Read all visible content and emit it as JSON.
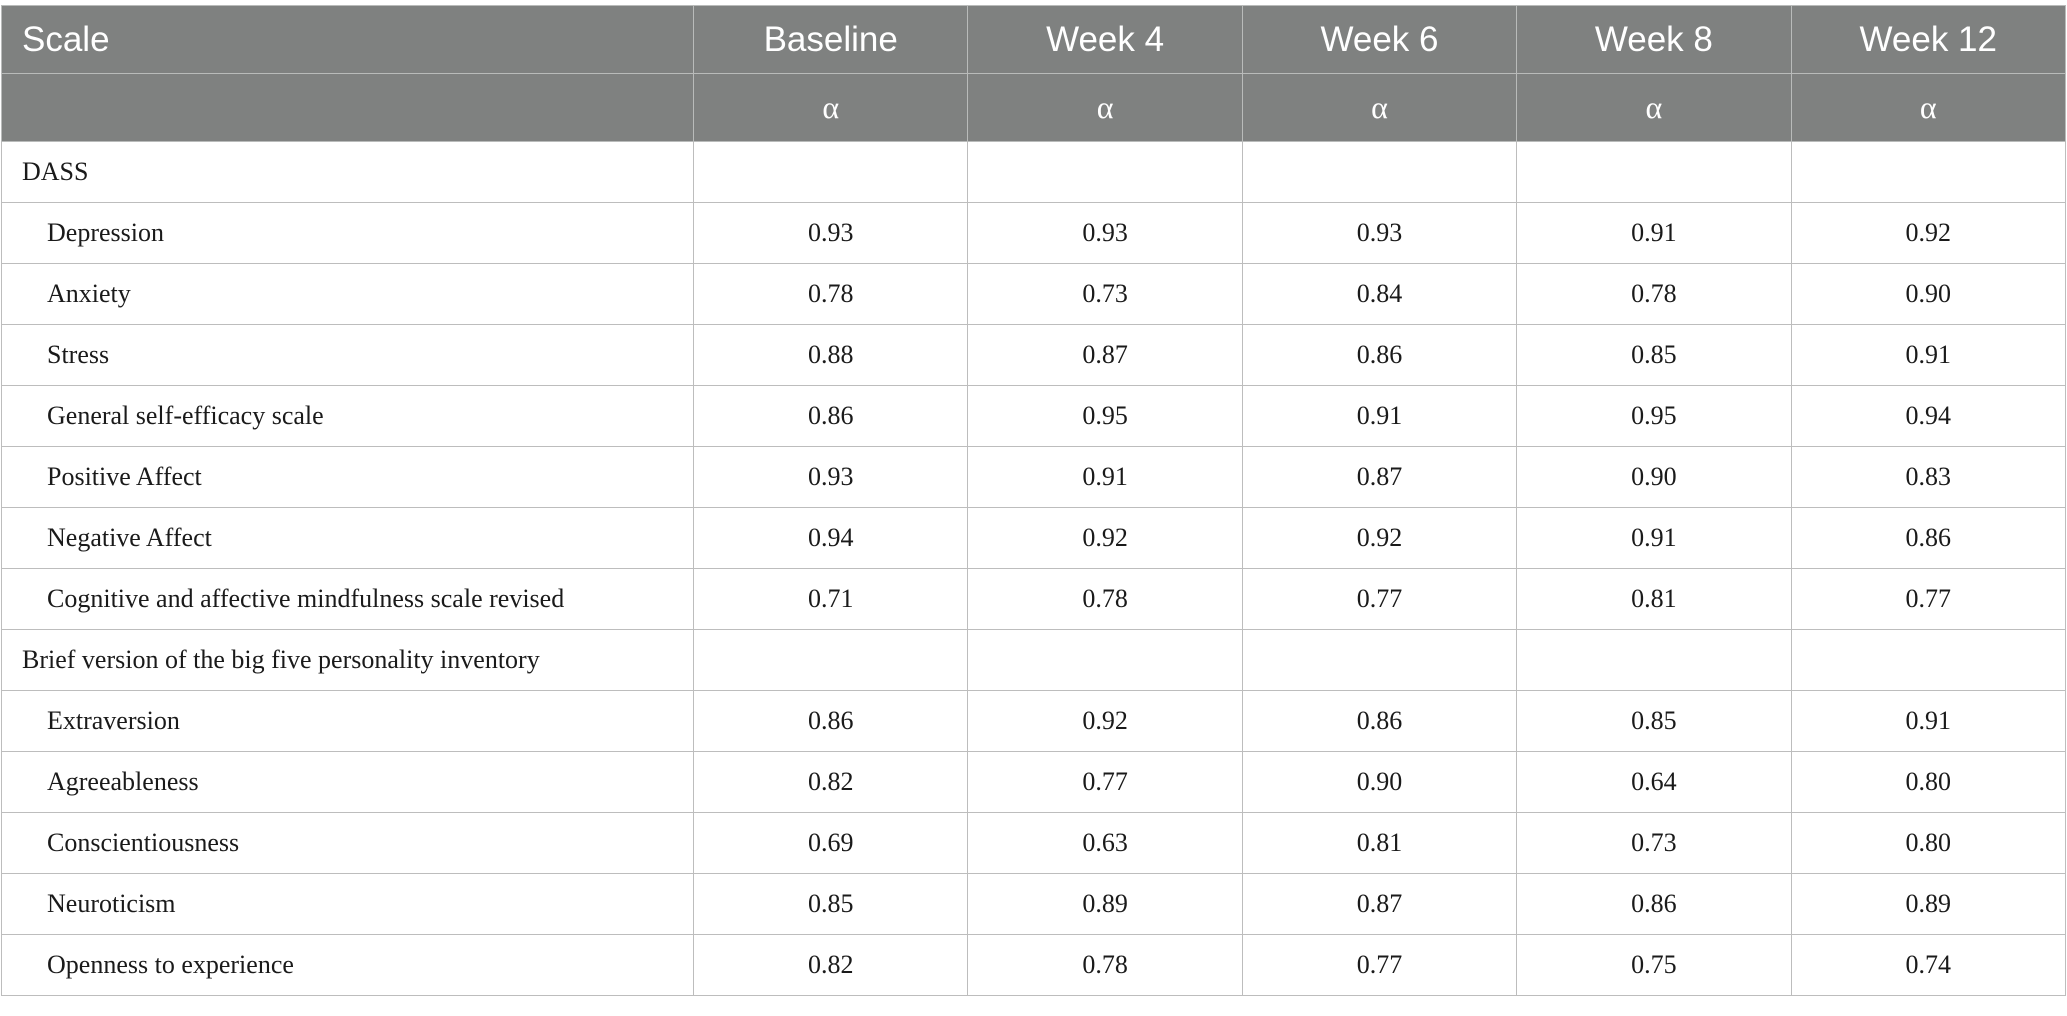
{
  "header": {
    "scale_label": "Scale",
    "columns": [
      "Baseline",
      "Week 4",
      "Week 6",
      "Week 8",
      "Week 12"
    ],
    "subheader_symbol": "α"
  },
  "rows": [
    {
      "label": "DASS",
      "values": [
        "",
        "",
        "",
        "",
        ""
      ]
    },
    {
      "label": "Depression",
      "values": [
        "0.93",
        "0.93",
        "0.93",
        "0.91",
        "0.92"
      ]
    },
    {
      "label": "Anxiety",
      "values": [
        "0.78",
        "0.73",
        "0.84",
        "0.78",
        "0.90"
      ]
    },
    {
      "label": "Stress",
      "values": [
        "0.88",
        "0.87",
        "0.86",
        "0.85",
        "0.91"
      ]
    },
    {
      "label": "General self-efficacy scale",
      "values": [
        "0.86",
        "0.95",
        "0.91",
        "0.95",
        "0.94"
      ]
    },
    {
      "label": "Positive Affect",
      "values": [
        "0.93",
        "0.91",
        "0.87",
        "0.90",
        "0.83"
      ]
    },
    {
      "label": "Negative Affect",
      "values": [
        "0.94",
        "0.92",
        "0.92",
        "0.91",
        "0.86"
      ]
    },
    {
      "label": "Cognitive and affective mindfulness scale revised",
      "values": [
        "0.71",
        "0.78",
        "0.77",
        "0.81",
        "0.77"
      ]
    },
    {
      "label": "Brief version of the big five personality inventory",
      "values": [
        "",
        "",
        "",
        "",
        ""
      ]
    },
    {
      "label": "Extraversion",
      "values": [
        "0.86",
        "0.92",
        "0.86",
        "0.85",
        "0.91"
      ]
    },
    {
      "label": "Agreeableness",
      "values": [
        "0.82",
        "0.77",
        "0.90",
        "0.64",
        "0.80"
      ]
    },
    {
      "label": "Conscientiousness",
      "values": [
        "0.69",
        "0.63",
        "0.81",
        "0.73",
        "0.80"
      ]
    },
    {
      "label": "Neuroticism",
      "values": [
        "0.85",
        "0.89",
        "0.87",
        "0.86",
        "0.89"
      ]
    },
    {
      "label": "Openness to experience",
      "values": [
        "0.82",
        "0.78",
        "0.77",
        "0.75",
        "0.74"
      ]
    }
  ],
  "colors": {
    "header_bg": "#7f8180",
    "header_text": "#ffffff",
    "grid_line": "#bdbdbd"
  }
}
